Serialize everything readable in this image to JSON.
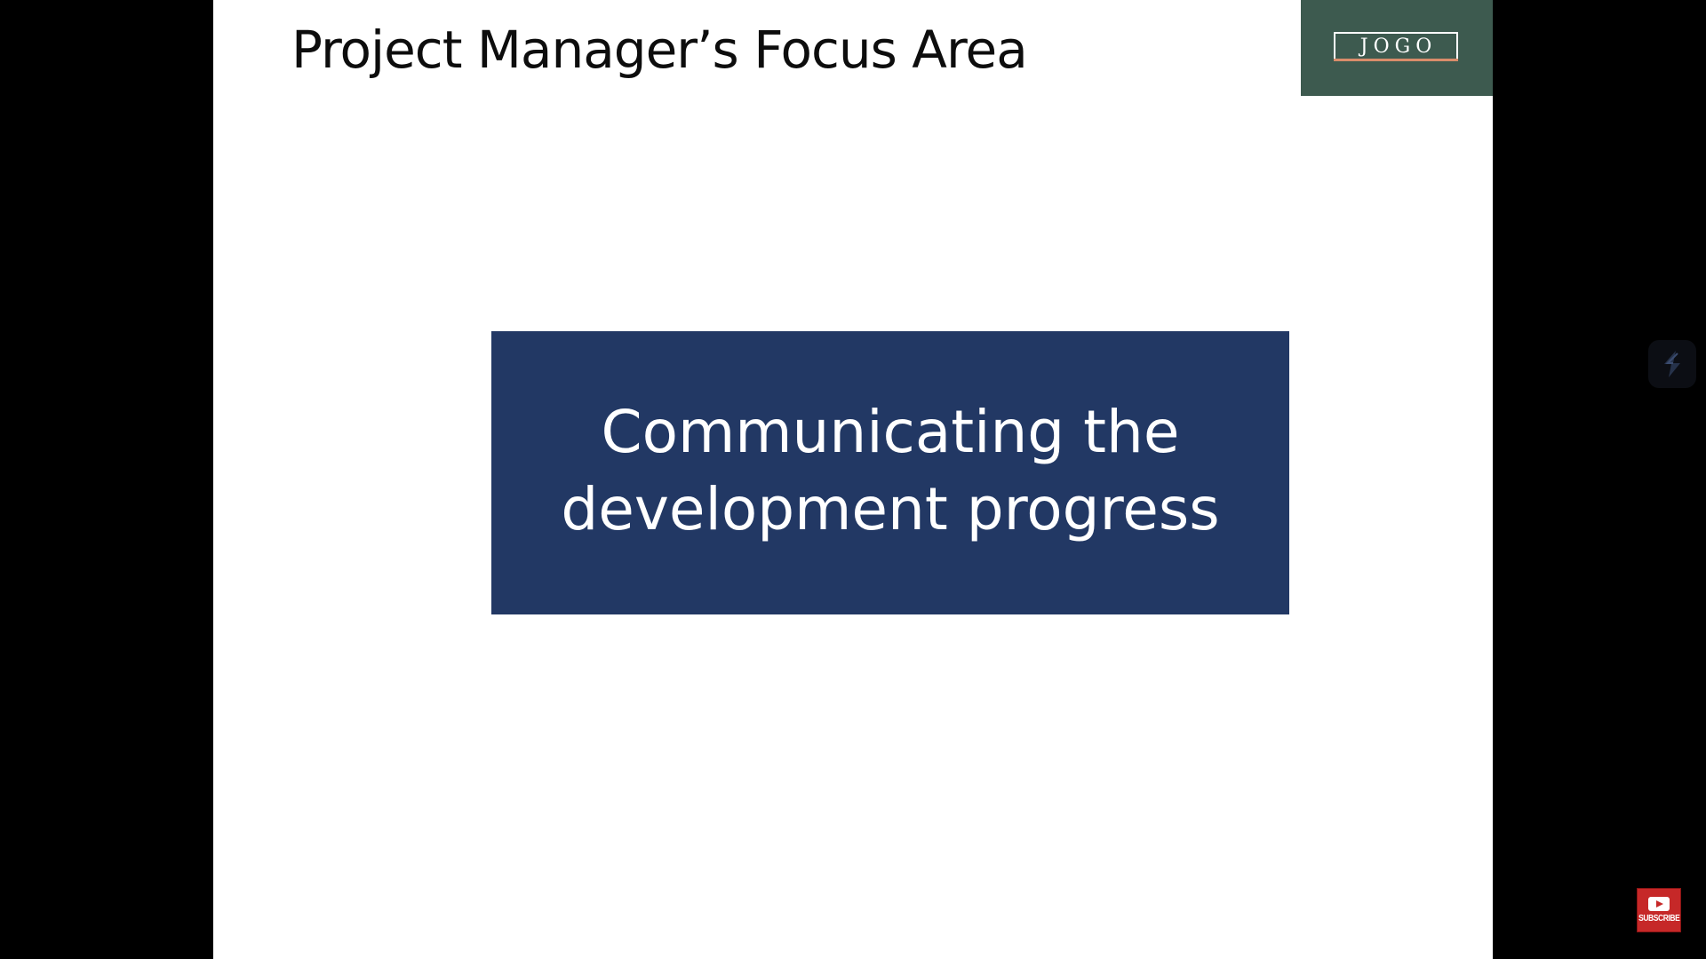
{
  "slide": {
    "title": "Project Manager’s Focus Area",
    "focus_text": "Communicating the development progress",
    "background_color": "#ffffff"
  },
  "logo": {
    "text": "JOGO",
    "background_color": "#3d5a4f",
    "accent_color": "#d98c6a"
  },
  "focus_box": {
    "background_color": "#223864",
    "text_color": "#ffffff"
  },
  "overlay": {
    "side_badge_icon": "slash-logo-icon",
    "subscribe_label": "SUBSCRIBE",
    "subscribe_icon": "youtube-play-icon",
    "subscribe_color": "#c62828"
  }
}
